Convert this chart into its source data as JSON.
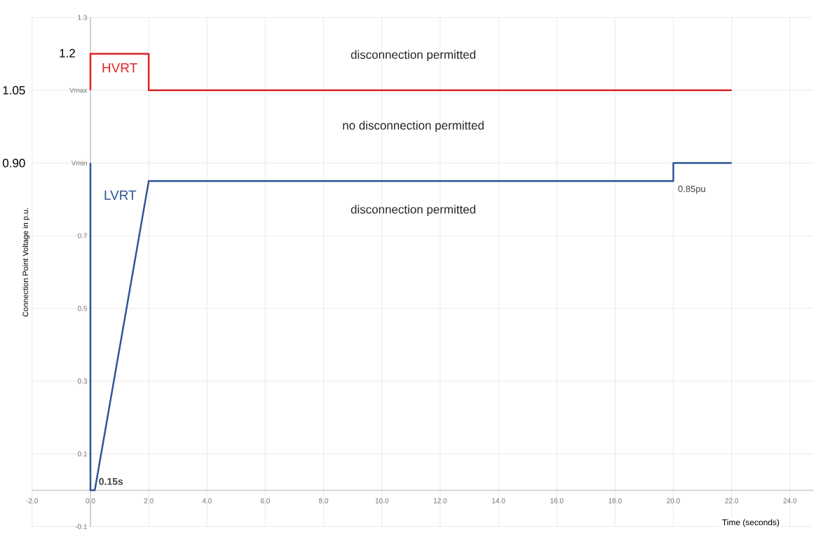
{
  "chart_data": {
    "type": "line",
    "xlabel": "Time (seconds)",
    "ylabel": "Connection Point Voltage in p.u.",
    "xlim": [
      -2,
      24.8
    ],
    "ylim": [
      -0.1,
      1.3
    ],
    "xticks": [
      {
        "value": -2,
        "label": "-2.0"
      },
      {
        "value": 0,
        "label": "0.0"
      },
      {
        "value": 2,
        "label": "2.0"
      },
      {
        "value": 4,
        "label": "4.0"
      },
      {
        "value": 6,
        "label": "6.0"
      },
      {
        "value": 8,
        "label": "8.0"
      },
      {
        "value": 10,
        "label": "10.0"
      },
      {
        "value": 12,
        "label": "12.0"
      },
      {
        "value": 14,
        "label": "14.0"
      },
      {
        "value": 16,
        "label": "16.0"
      },
      {
        "value": 18,
        "label": "18.0"
      },
      {
        "value": 20,
        "label": "20.0"
      },
      {
        "value": 22,
        "label": "22.0"
      },
      {
        "value": 24,
        "label": "24.0"
      }
    ],
    "yticks": [
      -0.1,
      0.1,
      0.3,
      0.5,
      0.7,
      {
        "value": 0.9,
        "label": "Vmin"
      },
      {
        "value": 1.1,
        "label": "Vmax"
      },
      1.3
    ],
    "grid": true,
    "line_style": "solid",
    "series": [
      {
        "name": "HVRT",
        "color": "#e02424",
        "x": [
          0,
          0,
          2,
          2,
          22
        ],
        "values": [
          1.1,
          1.2,
          1.2,
          1.1,
          1.1
        ]
      },
      {
        "name": "LVRT",
        "color": "#2f5597",
        "x": [
          0,
          0,
          0.15,
          2,
          20,
          20,
          22
        ],
        "values": [
          0.9,
          0,
          0,
          0.85,
          0.85,
          0.9,
          0.9
        ]
      }
    ],
    "annotations": [
      "1.2",
      "1.05",
      "0.90",
      "disconnection permitted",
      "no disconnection permitted",
      "disconnection permitted",
      {
        "text": "0.15s",
        "x": 0.15,
        "y": 0
      },
      {
        "text": "0.85pu",
        "x": 20,
        "y": 0.85
      }
    ]
  }
}
